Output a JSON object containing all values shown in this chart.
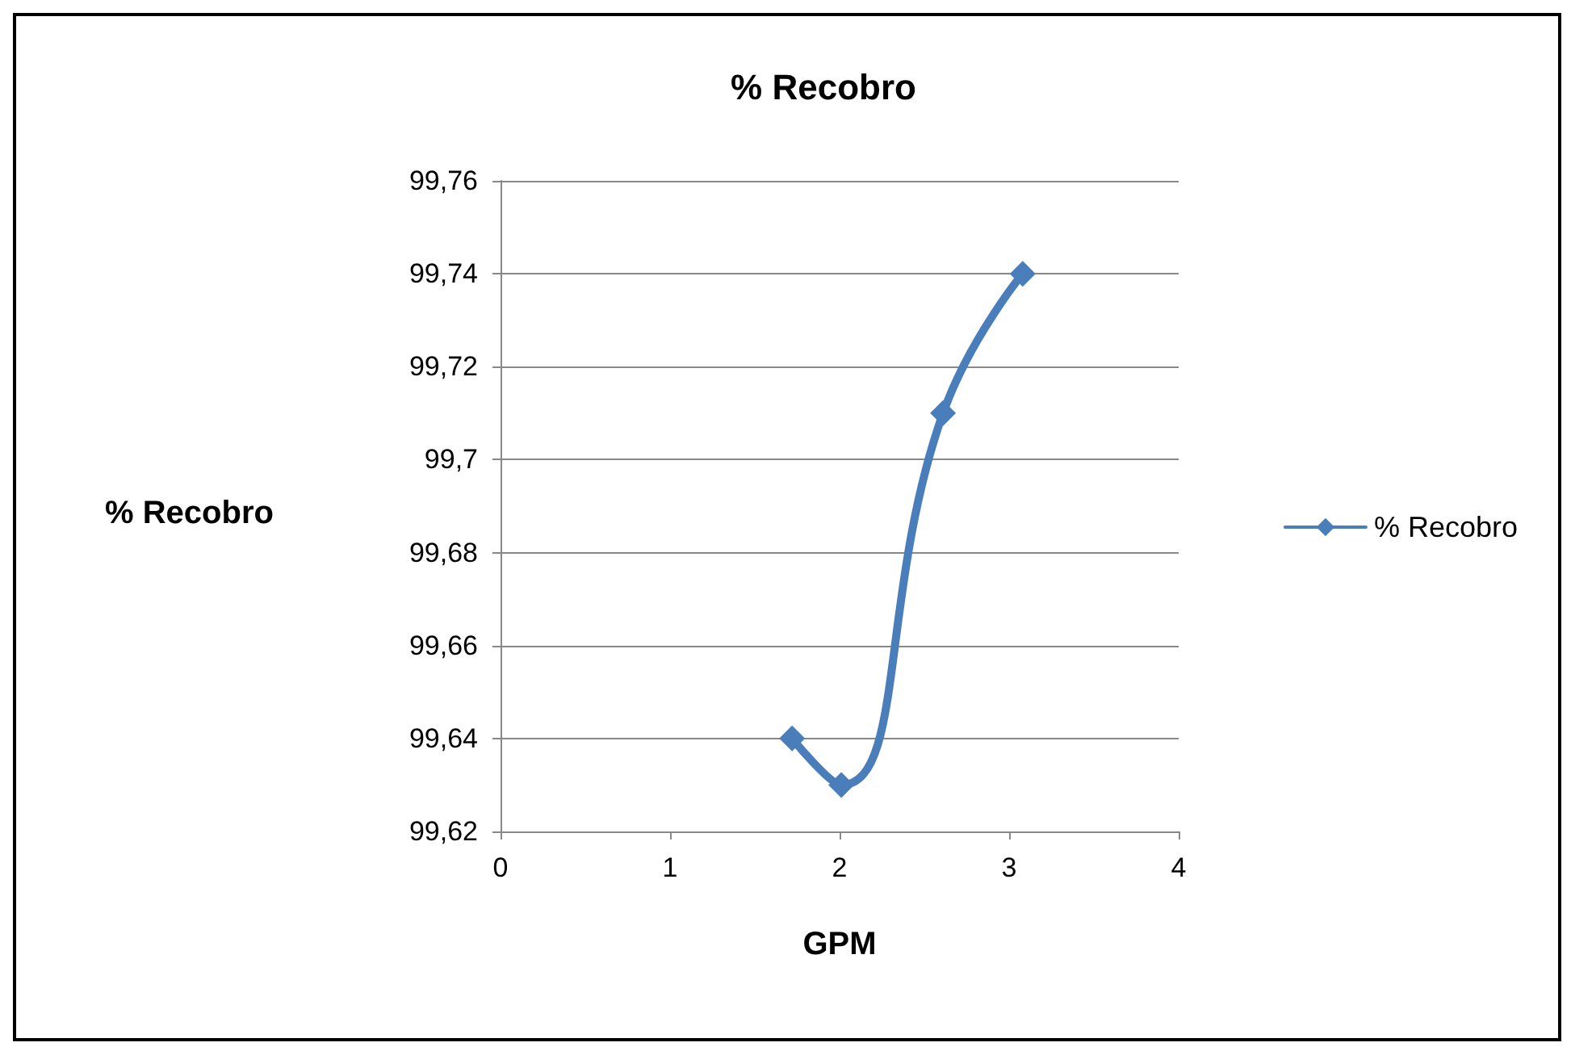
{
  "chart_data": {
    "type": "line",
    "title": "% Recobro",
    "xlabel": "GPM",
    "ylabel": "% Recobro",
    "x": [
      1.72,
      2.01,
      2.61,
      3.08
    ],
    "series": [
      {
        "name": "% Recobro",
        "color": "#4a7ebb",
        "values": [
          99.64,
          99.63,
          99.71,
          99.74
        ]
      }
    ],
    "xlim": [
      0,
      4
    ],
    "xticks": [
      0,
      1,
      2,
      3,
      4
    ],
    "ylim": [
      99.62,
      99.76
    ],
    "yticks": [
      {
        "value": 99.62,
        "label": "99,62"
      },
      {
        "value": 99.64,
        "label": "99,64"
      },
      {
        "value": 99.66,
        "label": "99,66"
      },
      {
        "value": 99.68,
        "label": "99,68"
      },
      {
        "value": 99.7,
        "label": "99,7"
      },
      {
        "value": 99.72,
        "label": "99,72"
      },
      {
        "value": 99.74,
        "label": "99,74"
      },
      {
        "value": 99.76,
        "label": "99,76"
      }
    ],
    "grid": "y",
    "legend": "right",
    "marker": "diamond",
    "line_style": "solid"
  }
}
